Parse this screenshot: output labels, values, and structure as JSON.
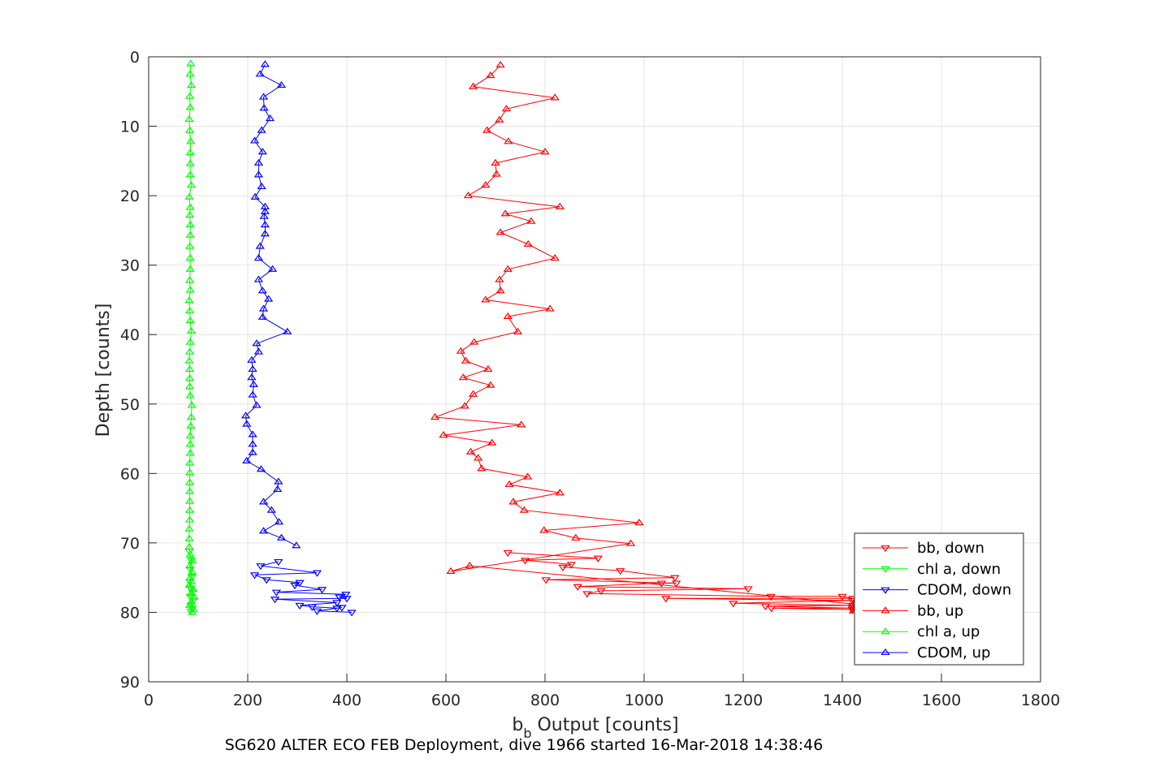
{
  "chart_data": {
    "type": "line",
    "title": "",
    "xlabel_main": "b",
    "xlabel_sub": "b",
    "xlabel_rest": " Output [counts]",
    "ylabel": "Depth [counts]",
    "caption": "SG620 ALTER ECO FEB Deployment, dive 1966 started 16-Mar-2018 14:38:46",
    "xlim": [
      0,
      1800
    ],
    "ylim": [
      0,
      90
    ],
    "y_reversed": true,
    "xticks": [
      "0",
      "200",
      "400",
      "600",
      "800",
      "1000",
      "1200",
      "1400",
      "1600",
      "1800"
    ],
    "yticks": [
      "0",
      "10",
      "20",
      "30",
      "40",
      "50",
      "60",
      "70",
      "80",
      "90"
    ],
    "grid": true,
    "legend_position": "bottom-right",
    "series": [
      {
        "name": "bb, down",
        "color": "#ff0000",
        "marker": "triangle-down",
        "points": [
          [
            725,
            71.4
          ],
          [
            907,
            72.2
          ],
          [
            760,
            72.5
          ],
          [
            853,
            73.1
          ],
          [
            836,
            73.5
          ],
          [
            952,
            74.0
          ],
          [
            1062,
            75.0
          ],
          [
            802,
            75.3
          ],
          [
            1065,
            75.8
          ],
          [
            1035,
            75.8
          ],
          [
            866,
            76.3
          ],
          [
            1210,
            76.6
          ],
          [
            913,
            76.9
          ],
          [
            885,
            77.3
          ],
          [
            1256,
            77.7
          ],
          [
            1400,
            77.7
          ],
          [
            1421,
            78.0
          ],
          [
            1044,
            78.0
          ],
          [
            1420,
            78.3
          ],
          [
            1180,
            78.7
          ],
          [
            1420,
            79.0
          ],
          [
            1245,
            79.1
          ],
          [
            1420,
            79.4
          ],
          [
            1257,
            79.4
          ],
          [
            1420,
            79.6
          ]
        ]
      },
      {
        "name": "chl a, down",
        "color": "#00ff00",
        "marker": "triangle-down",
        "points": [
          [
            82,
            71.2
          ],
          [
            86,
            72.5
          ],
          [
            84,
            73.8
          ],
          [
            87,
            74.9
          ],
          [
            83,
            75.6
          ],
          [
            85,
            76.5
          ],
          [
            88,
            77.0
          ],
          [
            84,
            77.7
          ],
          [
            90,
            78.3
          ],
          [
            85,
            79.0
          ],
          [
            88,
            79.4
          ],
          [
            85,
            79.8
          ]
        ]
      },
      {
        "name": "CDOM, down",
        "color": "#0000ff",
        "marker": "triangle-down",
        "points": [
          [
            262,
            72.7
          ],
          [
            226,
            73.3
          ],
          [
            340,
            74.3
          ],
          [
            214,
            74.6
          ],
          [
            238,
            75.3
          ],
          [
            305,
            75.7
          ],
          [
            295,
            76.1
          ],
          [
            350,
            76.7
          ],
          [
            258,
            77.1
          ],
          [
            398,
            77.4
          ],
          [
            385,
            77.8
          ],
          [
            400,
            78.0
          ],
          [
            255,
            78.1
          ],
          [
            380,
            78.6
          ],
          [
            305,
            79.0
          ],
          [
            330,
            79.2
          ],
          [
            380,
            79.4
          ],
          [
            390,
            79.3
          ],
          [
            340,
            79.8
          ],
          [
            410,
            80.0
          ]
        ]
      },
      {
        "name": "bb, up",
        "color": "#ff0000",
        "marker": "triangle-up",
        "points": [
          [
            710,
            1.2
          ],
          [
            690,
            2.7
          ],
          [
            655,
            4.3
          ],
          [
            820,
            5.9
          ],
          [
            722,
            7.5
          ],
          [
            708,
            9.1
          ],
          [
            683,
            10.6
          ],
          [
            726,
            12.2
          ],
          [
            800,
            13.7
          ],
          [
            700,
            15.3
          ],
          [
            702,
            16.9
          ],
          [
            680,
            18.5
          ],
          [
            645,
            20.0
          ],
          [
            830,
            21.6
          ],
          [
            720,
            22.6
          ],
          [
            772,
            23.7
          ],
          [
            710,
            25.3
          ],
          [
            766,
            27.0
          ],
          [
            820,
            29.0
          ],
          [
            725,
            30.6
          ],
          [
            708,
            32.1
          ],
          [
            710,
            33.7
          ],
          [
            680,
            35.0
          ],
          [
            810,
            36.3
          ],
          [
            725,
            37.4
          ],
          [
            745,
            39.6
          ],
          [
            657,
            41.1
          ],
          [
            630,
            42.4
          ],
          [
            640,
            43.8
          ],
          [
            685,
            45.0
          ],
          [
            635,
            46.2
          ],
          [
            690,
            47.3
          ],
          [
            655,
            48.6
          ],
          [
            638,
            50.3
          ],
          [
            578,
            51.9
          ],
          [
            752,
            53.0
          ],
          [
            595,
            54.5
          ],
          [
            693,
            55.6
          ],
          [
            650,
            56.9
          ],
          [
            665,
            57.8
          ],
          [
            672,
            59.3
          ],
          [
            765,
            60.5
          ],
          [
            728,
            61.6
          ],
          [
            830,
            62.8
          ],
          [
            736,
            64.1
          ],
          [
            758,
            65.3
          ],
          [
            990,
            67.1
          ],
          [
            798,
            68.2
          ],
          [
            862,
            69.3
          ],
          [
            973,
            70.1
          ],
          [
            610,
            74.1
          ],
          [
            648,
            73.3
          ],
          [
            1422,
            78.8
          ],
          [
            1422,
            79.3
          ],
          [
            1422,
            79.8
          ]
        ]
      },
      {
        "name": "chl a, up",
        "color": "#00ff00",
        "marker": "triangle-up",
        "points": [
          [
            85,
            1.0
          ],
          [
            84,
            2.5
          ],
          [
            86,
            4.1
          ],
          [
            83,
            5.7
          ],
          [
            84,
            7.3
          ],
          [
            82,
            9.0
          ],
          [
            83,
            10.6
          ],
          [
            85,
            12.2
          ],
          [
            84,
            13.8
          ],
          [
            84,
            15.4
          ],
          [
            84,
            17.0
          ],
          [
            86,
            18.5
          ],
          [
            82,
            20.2
          ],
          [
            84,
            21.7
          ],
          [
            83,
            22.8
          ],
          [
            84,
            24.2
          ],
          [
            84,
            25.7
          ],
          [
            83,
            27.3
          ],
          [
            84,
            29.0
          ],
          [
            84,
            30.6
          ],
          [
            83,
            32.2
          ],
          [
            84,
            33.6
          ],
          [
            82,
            35.1
          ],
          [
            83,
            36.6
          ],
          [
            84,
            38.0
          ],
          [
            86,
            39.5
          ],
          [
            84,
            41.1
          ],
          [
            83,
            42.5
          ],
          [
            82,
            43.8
          ],
          [
            83,
            45.0
          ],
          [
            83,
            46.3
          ],
          [
            83,
            47.5
          ],
          [
            84,
            48.8
          ],
          [
            87,
            50.2
          ],
          [
            86,
            51.9
          ],
          [
            85,
            53.2
          ],
          [
            84,
            54.6
          ],
          [
            84,
            55.8
          ],
          [
            84,
            57.1
          ],
          [
            83,
            58.5
          ],
          [
            83,
            59.9
          ],
          [
            83,
            61.3
          ],
          [
            83,
            62.6
          ],
          [
            83,
            64.0
          ],
          [
            83,
            65.3
          ],
          [
            83,
            66.7
          ],
          [
            82,
            68.0
          ],
          [
            82,
            69.4
          ],
          [
            82,
            70.6
          ],
          [
            84,
            71.7
          ],
          [
            88,
            72.6
          ],
          [
            83,
            73.3
          ],
          [
            88,
            74.2
          ],
          [
            84,
            75.0
          ],
          [
            86,
            75.6
          ],
          [
            82,
            76.1
          ],
          [
            90,
            76.7
          ],
          [
            86,
            77.3
          ],
          [
            92,
            77.8
          ],
          [
            86,
            78.5
          ],
          [
            83,
            79.0
          ],
          [
            90,
            79.6
          ],
          [
            88,
            80.0
          ]
        ]
      },
      {
        "name": "CDOM, up",
        "color": "#0000ff",
        "marker": "triangle-up",
        "points": [
          [
            235,
            1.1
          ],
          [
            225,
            2.5
          ],
          [
            268,
            4.1
          ],
          [
            232,
            5.8
          ],
          [
            233,
            7.4
          ],
          [
            245,
            8.9
          ],
          [
            228,
            10.6
          ],
          [
            214,
            12.1
          ],
          [
            230,
            13.7
          ],
          [
            222,
            15.3
          ],
          [
            222,
            17.0
          ],
          [
            228,
            18.7
          ],
          [
            215,
            20.2
          ],
          [
            235,
            21.6
          ],
          [
            235,
            22.3
          ],
          [
            233,
            23.0
          ],
          [
            235,
            24.2
          ],
          [
            235,
            25.5
          ],
          [
            225,
            27.3
          ],
          [
            222,
            29.0
          ],
          [
            250,
            30.6
          ],
          [
            222,
            32.1
          ],
          [
            230,
            33.7
          ],
          [
            242,
            34.9
          ],
          [
            232,
            36.3
          ],
          [
            230,
            37.5
          ],
          [
            280,
            39.6
          ],
          [
            218,
            41.3
          ],
          [
            222,
            42.5
          ],
          [
            208,
            43.7
          ],
          [
            210,
            45.0
          ],
          [
            208,
            46.2
          ],
          [
            212,
            47.2
          ],
          [
            210,
            48.7
          ],
          [
            218,
            50.2
          ],
          [
            196,
            51.7
          ],
          [
            198,
            52.9
          ],
          [
            210,
            54.4
          ],
          [
            210,
            55.8
          ],
          [
            210,
            57.0
          ],
          [
            198,
            58.2
          ],
          [
            227,
            59.4
          ],
          [
            262,
            61.2
          ],
          [
            260,
            62.3
          ],
          [
            232,
            64.1
          ],
          [
            248,
            65.3
          ],
          [
            263,
            67.0
          ],
          [
            232,
            68.3
          ],
          [
            268,
            69.3
          ],
          [
            298,
            70.4
          ]
        ]
      }
    ]
  }
}
